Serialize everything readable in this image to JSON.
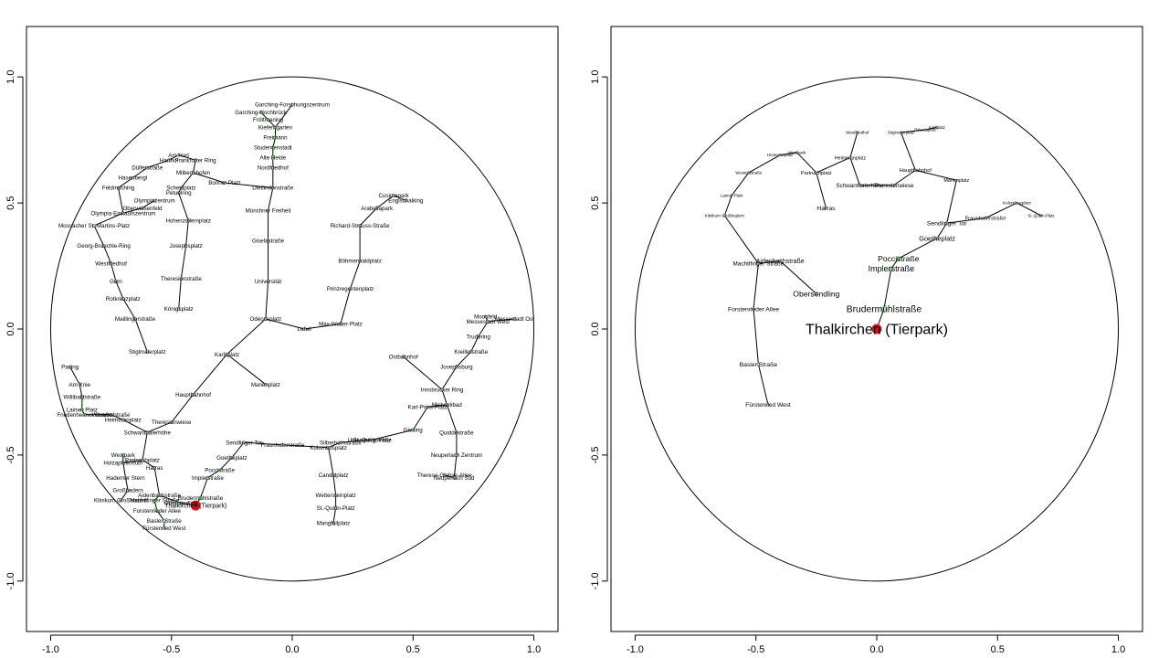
{
  "chart_data": [
    {
      "type": "scatter",
      "title": "",
      "xlabel": "",
      "ylabel": "",
      "xlim": [
        -1.1,
        1.1
      ],
      "ylim": [
        -1.2,
        1.2
      ],
      "xticks": [
        "-1.0",
        "-0.5",
        "0.0",
        "0.5",
        "1.0"
      ],
      "yticks": [
        "-1.0",
        "-0.5",
        "0.0",
        "0.5",
        "1.0"
      ],
      "focus": "Thalkirchen (Tierpark)",
      "points": [
        {
          "label": "Garching-Forschungszentrum",
          "x": 0.0,
          "y": 0.89
        },
        {
          "label": "Garching-Hochbrück",
          "x": -0.13,
          "y": 0.86
        },
        {
          "label": "Fröttmaning",
          "x": -0.1,
          "y": 0.83
        },
        {
          "label": "Kieferngarten",
          "x": -0.07,
          "y": 0.8
        },
        {
          "label": "Freimann",
          "x": -0.07,
          "y": 0.76
        },
        {
          "label": "Studentenstadt",
          "x": -0.08,
          "y": 0.72
        },
        {
          "label": "Alte Heide",
          "x": -0.08,
          "y": 0.68
        },
        {
          "label": "Nordfriedhof",
          "x": -0.08,
          "y": 0.64
        },
        {
          "label": "Dietlindenstraße",
          "x": -0.08,
          "y": 0.56
        },
        {
          "label": "Münchner Freiheit",
          "x": -0.1,
          "y": 0.47
        },
        {
          "label": "Giselastraße",
          "x": -0.1,
          "y": 0.35
        },
        {
          "label": "Universität",
          "x": -0.1,
          "y": 0.19
        },
        {
          "label": "Odeonsplatz",
          "x": -0.11,
          "y": 0.04
        },
        {
          "label": "Lehel",
          "x": 0.05,
          "y": 0.0
        },
        {
          "label": "Max-Weber-Platz",
          "x": 0.2,
          "y": 0.02
        },
        {
          "label": "Richard-Strauss-Straße",
          "x": 0.28,
          "y": 0.41
        },
        {
          "label": "Arabellapark",
          "x": 0.35,
          "y": 0.48
        },
        {
          "label": "Englschalking",
          "x": 0.47,
          "y": 0.51
        },
        {
          "label": "Cosimapark",
          "x": 0.42,
          "y": 0.53
        },
        {
          "label": "Böhmerwaldplatz",
          "x": 0.28,
          "y": 0.27
        },
        {
          "label": "Prinzregentenplatz",
          "x": 0.24,
          "y": 0.16
        },
        {
          "label": "Ostbahnhof",
          "x": 0.46,
          "y": -0.11
        },
        {
          "label": "Innsbrucker Ring",
          "x": 0.62,
          "y": -0.24
        },
        {
          "label": "Josephsburg",
          "x": 0.68,
          "y": -0.15
        },
        {
          "label": "Kreillerstraße",
          "x": 0.74,
          "y": -0.09
        },
        {
          "label": "Trudering",
          "x": 0.77,
          "y": -0.03
        },
        {
          "label": "Moosfeld",
          "x": 0.8,
          "y": 0.05
        },
        {
          "label": "Messestadt West",
          "x": 0.81,
          "y": 0.03
        },
        {
          "label": "Messestadt Ost",
          "x": 0.92,
          "y": 0.04
        },
        {
          "label": "Michaelibad",
          "x": 0.64,
          "y": -0.3
        },
        {
          "label": "Quiddestraße",
          "x": 0.68,
          "y": -0.41
        },
        {
          "label": "Neuperlach Zentrum",
          "x": 0.68,
          "y": -0.5
        },
        {
          "label": "Therese-Giehse-Allee",
          "x": 0.63,
          "y": -0.58
        },
        {
          "label": "Neuperlach Süd",
          "x": 0.67,
          "y": -0.59
        },
        {
          "label": "Karl-Preis-Platz",
          "x": 0.56,
          "y": -0.31
        },
        {
          "label": "Giesing",
          "x": 0.5,
          "y": -0.4
        },
        {
          "label": "Untersbergstraße",
          "x": 0.32,
          "y": -0.44
        },
        {
          "label": "St.-Quirin-Platz",
          "x": 0.33,
          "y": -0.44
        },
        {
          "label": "Silberhornstraße",
          "x": 0.2,
          "y": -0.45
        },
        {
          "label": "Kolumbusplatz",
          "x": 0.15,
          "y": -0.47
        },
        {
          "label": "Fraunhoferstraße",
          "x": -0.04,
          "y": -0.46
        },
        {
          "label": "Candidplatz",
          "x": 0.17,
          "y": -0.58
        },
        {
          "label": "Wettersteinplatz",
          "x": 0.18,
          "y": -0.66
        },
        {
          "label": "St.-Quirin-Platz ",
          "x": 0.18,
          "y": -0.71
        },
        {
          "label": "Mangfallplatz",
          "x": 0.17,
          "y": -0.77
        },
        {
          "label": "Marienplatz",
          "x": -0.11,
          "y": -0.22
        },
        {
          "label": "Sendlinger Tor",
          "x": -0.2,
          "y": -0.45
        },
        {
          "label": "Goetheplatz",
          "x": -0.25,
          "y": -0.51
        },
        {
          "label": "Poccistraße",
          "x": -0.3,
          "y": -0.56
        },
        {
          "label": "Implerstraße",
          "x": -0.35,
          "y": -0.59
        },
        {
          "label": "Brudermühlstraße",
          "x": -0.38,
          "y": -0.67
        },
        {
          "label": "Thalkirchen (Tierpark)",
          "x": -0.4,
          "y": -0.7
        },
        {
          "label": "Obersendling",
          "x": -0.46,
          "y": -0.69
        },
        {
          "label": "Aidenbachstraße",
          "x": -0.55,
          "y": -0.66
        },
        {
          "label": "Machtlfinger Straße",
          "x": -0.57,
          "y": -0.68
        },
        {
          "label": "Forstenrieder Allee",
          "x": -0.56,
          "y": -0.72
        },
        {
          "label": "Basler Straße",
          "x": -0.53,
          "y": -0.76
        },
        {
          "label": "Fürstenried West",
          "x": -0.53,
          "y": -0.79
        },
        {
          "label": "Großhadern",
          "x": -0.68,
          "y": -0.64
        },
        {
          "label": "Klinikum Großhadern",
          "x": -0.71,
          "y": -0.68
        },
        {
          "label": "Haderner Stern",
          "x": -0.69,
          "y": -0.59
        },
        {
          "label": "Holzapfelkreuth",
          "x": -0.7,
          "y": -0.53
        },
        {
          "label": "Westpark",
          "x": -0.7,
          "y": -0.5
        },
        {
          "label": "Partnachplatz",
          "x": -0.62,
          "y": -0.52
        },
        {
          "label": "Harras",
          "x": -0.57,
          "y": -0.55
        },
        {
          "label": "Schwanthalerhöhe",
          "x": -0.6,
          "y": -0.41
        },
        {
          "label": "Theresienwiese",
          "x": -0.5,
          "y": -0.37
        },
        {
          "label": "Heimeranplatz",
          "x": -0.7,
          "y": -0.36
        },
        {
          "label": "Westendstraße",
          "x": -0.75,
          "y": -0.34
        },
        {
          "label": "Friedenheimer Straße",
          "x": -0.86,
          "y": -0.34
        },
        {
          "label": "Laimer Platz",
          "x": -0.87,
          "y": -0.32
        },
        {
          "label": "Willibaldstraße",
          "x": -0.87,
          "y": -0.27
        },
        {
          "label": "Am Knie",
          "x": -0.88,
          "y": -0.22
        },
        {
          "label": "Pasing",
          "x": -0.92,
          "y": -0.15
        },
        {
          "label": "Hauptbahnhof",
          "x": -0.41,
          "y": -0.26
        },
        {
          "label": "Karlsplatz",
          "x": -0.27,
          "y": -0.1
        },
        {
          "label": "Stiglmaierplatz",
          "x": -0.6,
          "y": -0.09
        },
        {
          "label": "Königsplatz",
          "x": -0.47,
          "y": 0.08
        },
        {
          "label": "Theresienstraße",
          "x": -0.46,
          "y": 0.2
        },
        {
          "label": "Josephsplatz",
          "x": -0.44,
          "y": 0.33
        },
        {
          "label": "Hohenzollernplatz",
          "x": -0.43,
          "y": 0.43
        },
        {
          "label": "Scheidplatz",
          "x": -0.46,
          "y": 0.56
        },
        {
          "label": "Bonner Platz",
          "x": -0.28,
          "y": 0.58
        },
        {
          "label": "Milbertshofen",
          "x": -0.41,
          "y": 0.62
        },
        {
          "label": "Frankfurter Ring",
          "x": -0.4,
          "y": 0.67
        },
        {
          "label": "Am Hart",
          "x": -0.47,
          "y": 0.69
        },
        {
          "label": "Harthof",
          "x": -0.51,
          "y": 0.67
        },
        {
          "label": "Dülferstraße",
          "x": -0.6,
          "y": 0.64
        },
        {
          "label": "Hasenbergl",
          "x": -0.66,
          "y": 0.6
        },
        {
          "label": "Feldmoching",
          "x": -0.72,
          "y": 0.56
        },
        {
          "label": "Petuelring",
          "x": -0.47,
          "y": 0.54
        },
        {
          "label": "Olympiazentrum",
          "x": -0.57,
          "y": 0.51
        },
        {
          "label": "Oberwiesenfeld",
          "x": -0.62,
          "y": 0.48
        },
        {
          "label": "Olympia-Einkaufszentrum",
          "x": -0.7,
          "y": 0.46
        },
        {
          "label": "Moosacher St.-Martins-Platz",
          "x": -0.82,
          "y": 0.41
        },
        {
          "label": "Georg-Brauchle-Ring",
          "x": -0.78,
          "y": 0.33
        },
        {
          "label": "Westfriedhof",
          "x": -0.75,
          "y": 0.26
        },
        {
          "label": "Gern",
          "x": -0.73,
          "y": 0.19
        },
        {
          "label": "Rotkreuzplatz",
          "x": -0.7,
          "y": 0.12
        },
        {
          "label": "Maillingerstraße",
          "x": -0.65,
          "y": 0.04
        }
      ]
    },
    {
      "type": "scatter",
      "title": "",
      "xlabel": "",
      "ylabel": "",
      "xlim": [
        -1.1,
        1.1
      ],
      "ylim": [
        -1.2,
        1.2
      ],
      "xticks": [
        "-1.0",
        "-0.5",
        "0.0",
        "0.5",
        "1.0"
      ],
      "yticks": [
        "-1.0",
        "-0.5",
        "0.0",
        "0.5",
        "1.0"
      ],
      "focus": "Thalkirchen (Tierpark)",
      "points": [
        {
          "label": "Thalkirchen (Tierpark)",
          "x": 0.0,
          "y": 0.0
        },
        {
          "label": "Brudermühlstraße",
          "x": 0.03,
          "y": 0.08
        },
        {
          "label": "Obersendling",
          "x": -0.25,
          "y": 0.14
        },
        {
          "label": "Implerstraße",
          "x": 0.06,
          "y": 0.24
        },
        {
          "label": "Poccistraße",
          "x": 0.09,
          "y": 0.28
        },
        {
          "label": "Goetheplatz",
          "x": 0.25,
          "y": 0.36
        },
        {
          "label": "Sendlinger Tor",
          "x": 0.29,
          "y": 0.42
        },
        {
          "label": "Harras",
          "x": -0.21,
          "y": 0.48
        },
        {
          "label": "Partnachplatz",
          "x": -0.25,
          "y": 0.62
        },
        {
          "label": "Aidenbachstraße",
          "x": -0.4,
          "y": 0.27
        },
        {
          "label": "Machtlfinger Straße",
          "x": -0.49,
          "y": 0.26
        },
        {
          "label": "Forstenrieder Allee",
          "x": -0.51,
          "y": 0.08
        },
        {
          "label": "Basler Straße",
          "x": -0.49,
          "y": -0.14
        },
        {
          "label": "Fürstenried West",
          "x": -0.45,
          "y": -0.3
        },
        {
          "label": "Westpark",
          "x": -0.33,
          "y": 0.7
        },
        {
          "label": "Heimeranplatz",
          "x": -0.4,
          "y": 0.69
        },
        {
          "label": "Westendstraße",
          "x": -0.53,
          "y": 0.62
        },
        {
          "label": "Laimer Platz",
          "x": -0.6,
          "y": 0.53
        },
        {
          "label": "Klinikum Großhadern",
          "x": -0.63,
          "y": 0.45
        },
        {
          "label": "Fraunhoferstraße",
          "x": 0.45,
          "y": 0.44
        },
        {
          "label": "Kolumbusplatz",
          "x": 0.58,
          "y": 0.5
        },
        {
          "label": "St.-Quirin-Platz",
          "x": 0.68,
          "y": 0.45
        },
        {
          "label": "Marienplatz",
          "x": 0.33,
          "y": 0.59
        },
        {
          "label": "Hauptbahnhof",
          "x": 0.16,
          "y": 0.63
        },
        {
          "label": "Schwanthalerhöhe",
          "x": -0.07,
          "y": 0.57
        },
        {
          "label": "Theresienwiese",
          "x": 0.07,
          "y": 0.57
        },
        {
          "label": "Heimeranplatz ",
          "x": -0.11,
          "y": 0.68
        },
        {
          "label": "Westfriedhof",
          "x": -0.08,
          "y": 0.78
        },
        {
          "label": "Odeonsplatz",
          "x": 0.2,
          "y": 0.79
        },
        {
          "label": "Karlsplatz",
          "x": 0.25,
          "y": 0.8
        },
        {
          "label": "Stiglmaierplatz",
          "x": 0.1,
          "y": 0.78
        }
      ]
    }
  ]
}
